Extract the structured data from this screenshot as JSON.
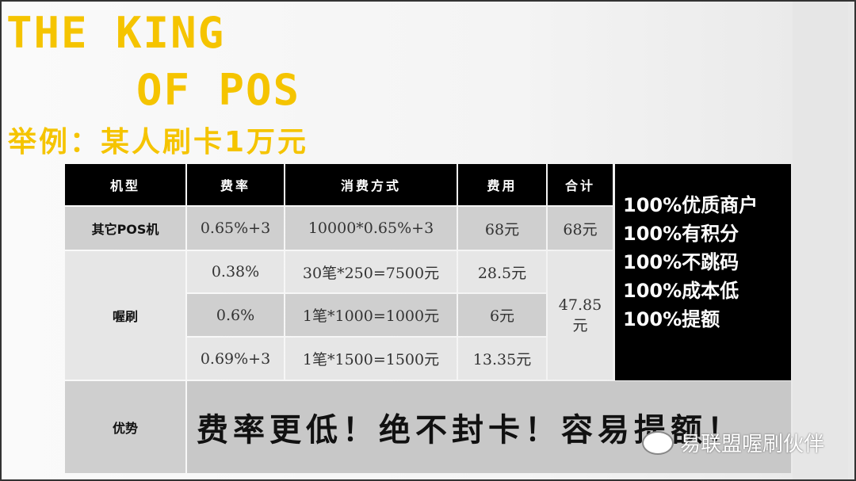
{
  "title_line1": "THE KING",
  "title_line2": "OF POS",
  "subtitle": "举例：某人刷卡1万元",
  "table": {
    "headers": [
      "机型",
      "费率",
      "消费方式",
      "费用",
      "合计"
    ],
    "other": {
      "model": "其它POS机",
      "rate": "0.65%+3",
      "method": "10000*0.65%+3",
      "fee": "68元",
      "total": "68元"
    },
    "wo": {
      "model": "喔刷",
      "rows": [
        {
          "rate": "0.38%",
          "method": "30笔*250=7500元",
          "fee": "28.5元"
        },
        {
          "rate": "0.6%",
          "method": "1笔*1000=1000元",
          "fee": "6元"
        },
        {
          "rate": "0.69%+3",
          "method": "1笔*1500=1500元",
          "fee": "13.35元"
        }
      ],
      "total_line1": "47.85",
      "total_line2": "元"
    },
    "advantage_label": "优势",
    "advantage_text": "费率更低！绝不封卡！容易提额！"
  },
  "features": [
    "100%优质商户",
    "100%有积分",
    "100%不跳码",
    "100%成本低",
    "100%提额"
  ],
  "watermark": "易联盟喔刷伙伴",
  "colors": {
    "title": "#f5c400",
    "header": "#000000"
  }
}
